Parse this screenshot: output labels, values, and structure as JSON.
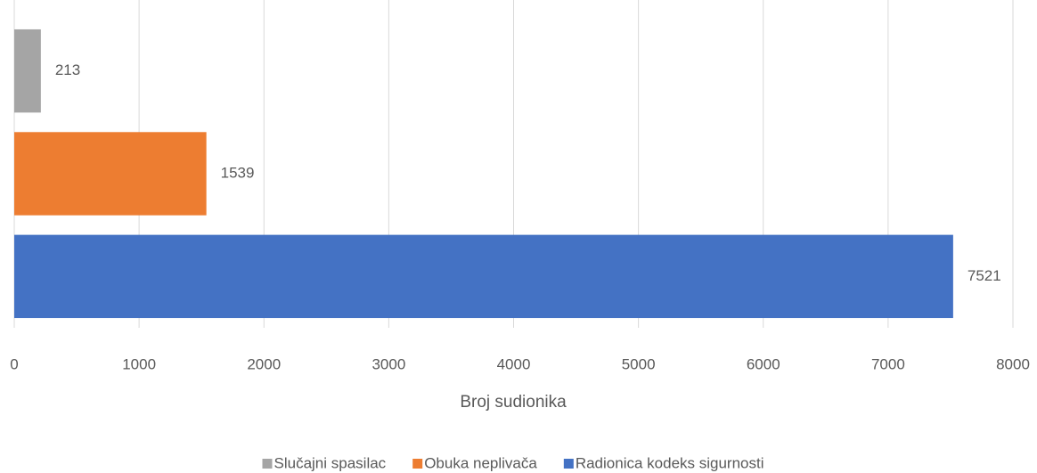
{
  "chart_data": {
    "type": "bar",
    "orientation": "horizontal",
    "series": [
      {
        "name": "Slučajni spasilac",
        "color": "#a5a5a5",
        "values": [
          213
        ]
      },
      {
        "name": "Obuka neplivača",
        "color": "#ed7d31",
        "values": [
          1539
        ]
      },
      {
        "name": "Radionica kodeks sigurnosti",
        "color": "#4472c4",
        "values": [
          7521
        ]
      }
    ],
    "xlabel": "Broj sudionika",
    "xlim": [
      0,
      8000
    ],
    "xticks": [
      0,
      1000,
      2000,
      3000,
      4000,
      5000,
      6000,
      7000,
      8000
    ],
    "grid": true,
    "legend": "bottom"
  }
}
